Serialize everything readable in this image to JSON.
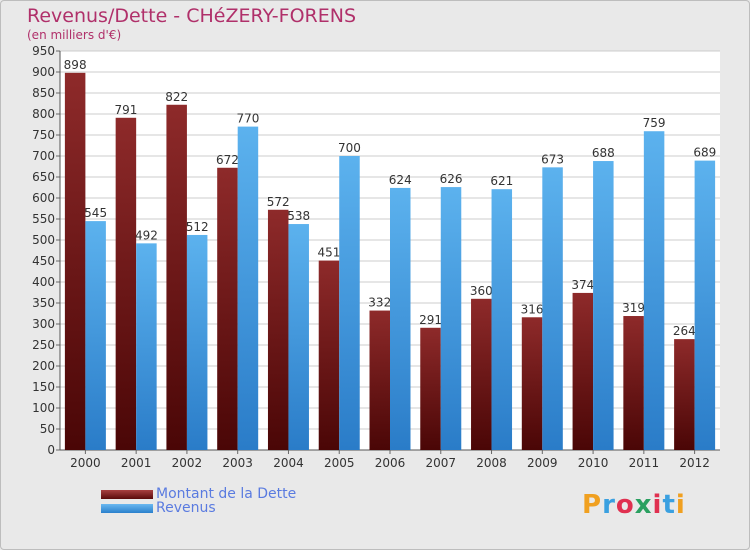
{
  "title": "Revenus/Dette - CHéZERY-FORENS",
  "subtitle": "(en milliers d'€)",
  "logo": {
    "text": "Proxiti",
    "letter_colors": [
      "#f0a020",
      "#3aa0e0",
      "#e03050",
      "#2aa060",
      "#e03050",
      "#3aa0e0",
      "#f0a020"
    ]
  },
  "colors": {
    "dette": "#7a1a1a",
    "revenus": "#3d9ee6"
  },
  "chart_data": {
    "type": "bar",
    "categories": [
      "2000",
      "2001",
      "2002",
      "2003",
      "2004",
      "2005",
      "2006",
      "2007",
      "2008",
      "2009",
      "2010",
      "2011",
      "2012"
    ],
    "series": [
      {
        "name": "Montant de la Dette",
        "values": [
          898,
          791,
          822,
          672,
          572,
          451,
          332,
          291,
          360,
          316,
          374,
          319,
          264
        ]
      },
      {
        "name": "Revenus",
        "values": [
          545,
          492,
          512,
          770,
          538,
          700,
          624,
          626,
          621,
          673,
          688,
          759,
          689
        ]
      }
    ],
    "ylim": [
      0,
      950
    ],
    "yticks": [
      "0",
      "50",
      "100",
      "150",
      "200",
      "250",
      "300",
      "350",
      "400",
      "450",
      "500",
      "550",
      "600",
      "650",
      "700",
      "750",
      "800",
      "850",
      "900",
      "950"
    ],
    "xlabel": "",
    "ylabel": "",
    "grid": true,
    "legend": "bottom-left"
  }
}
